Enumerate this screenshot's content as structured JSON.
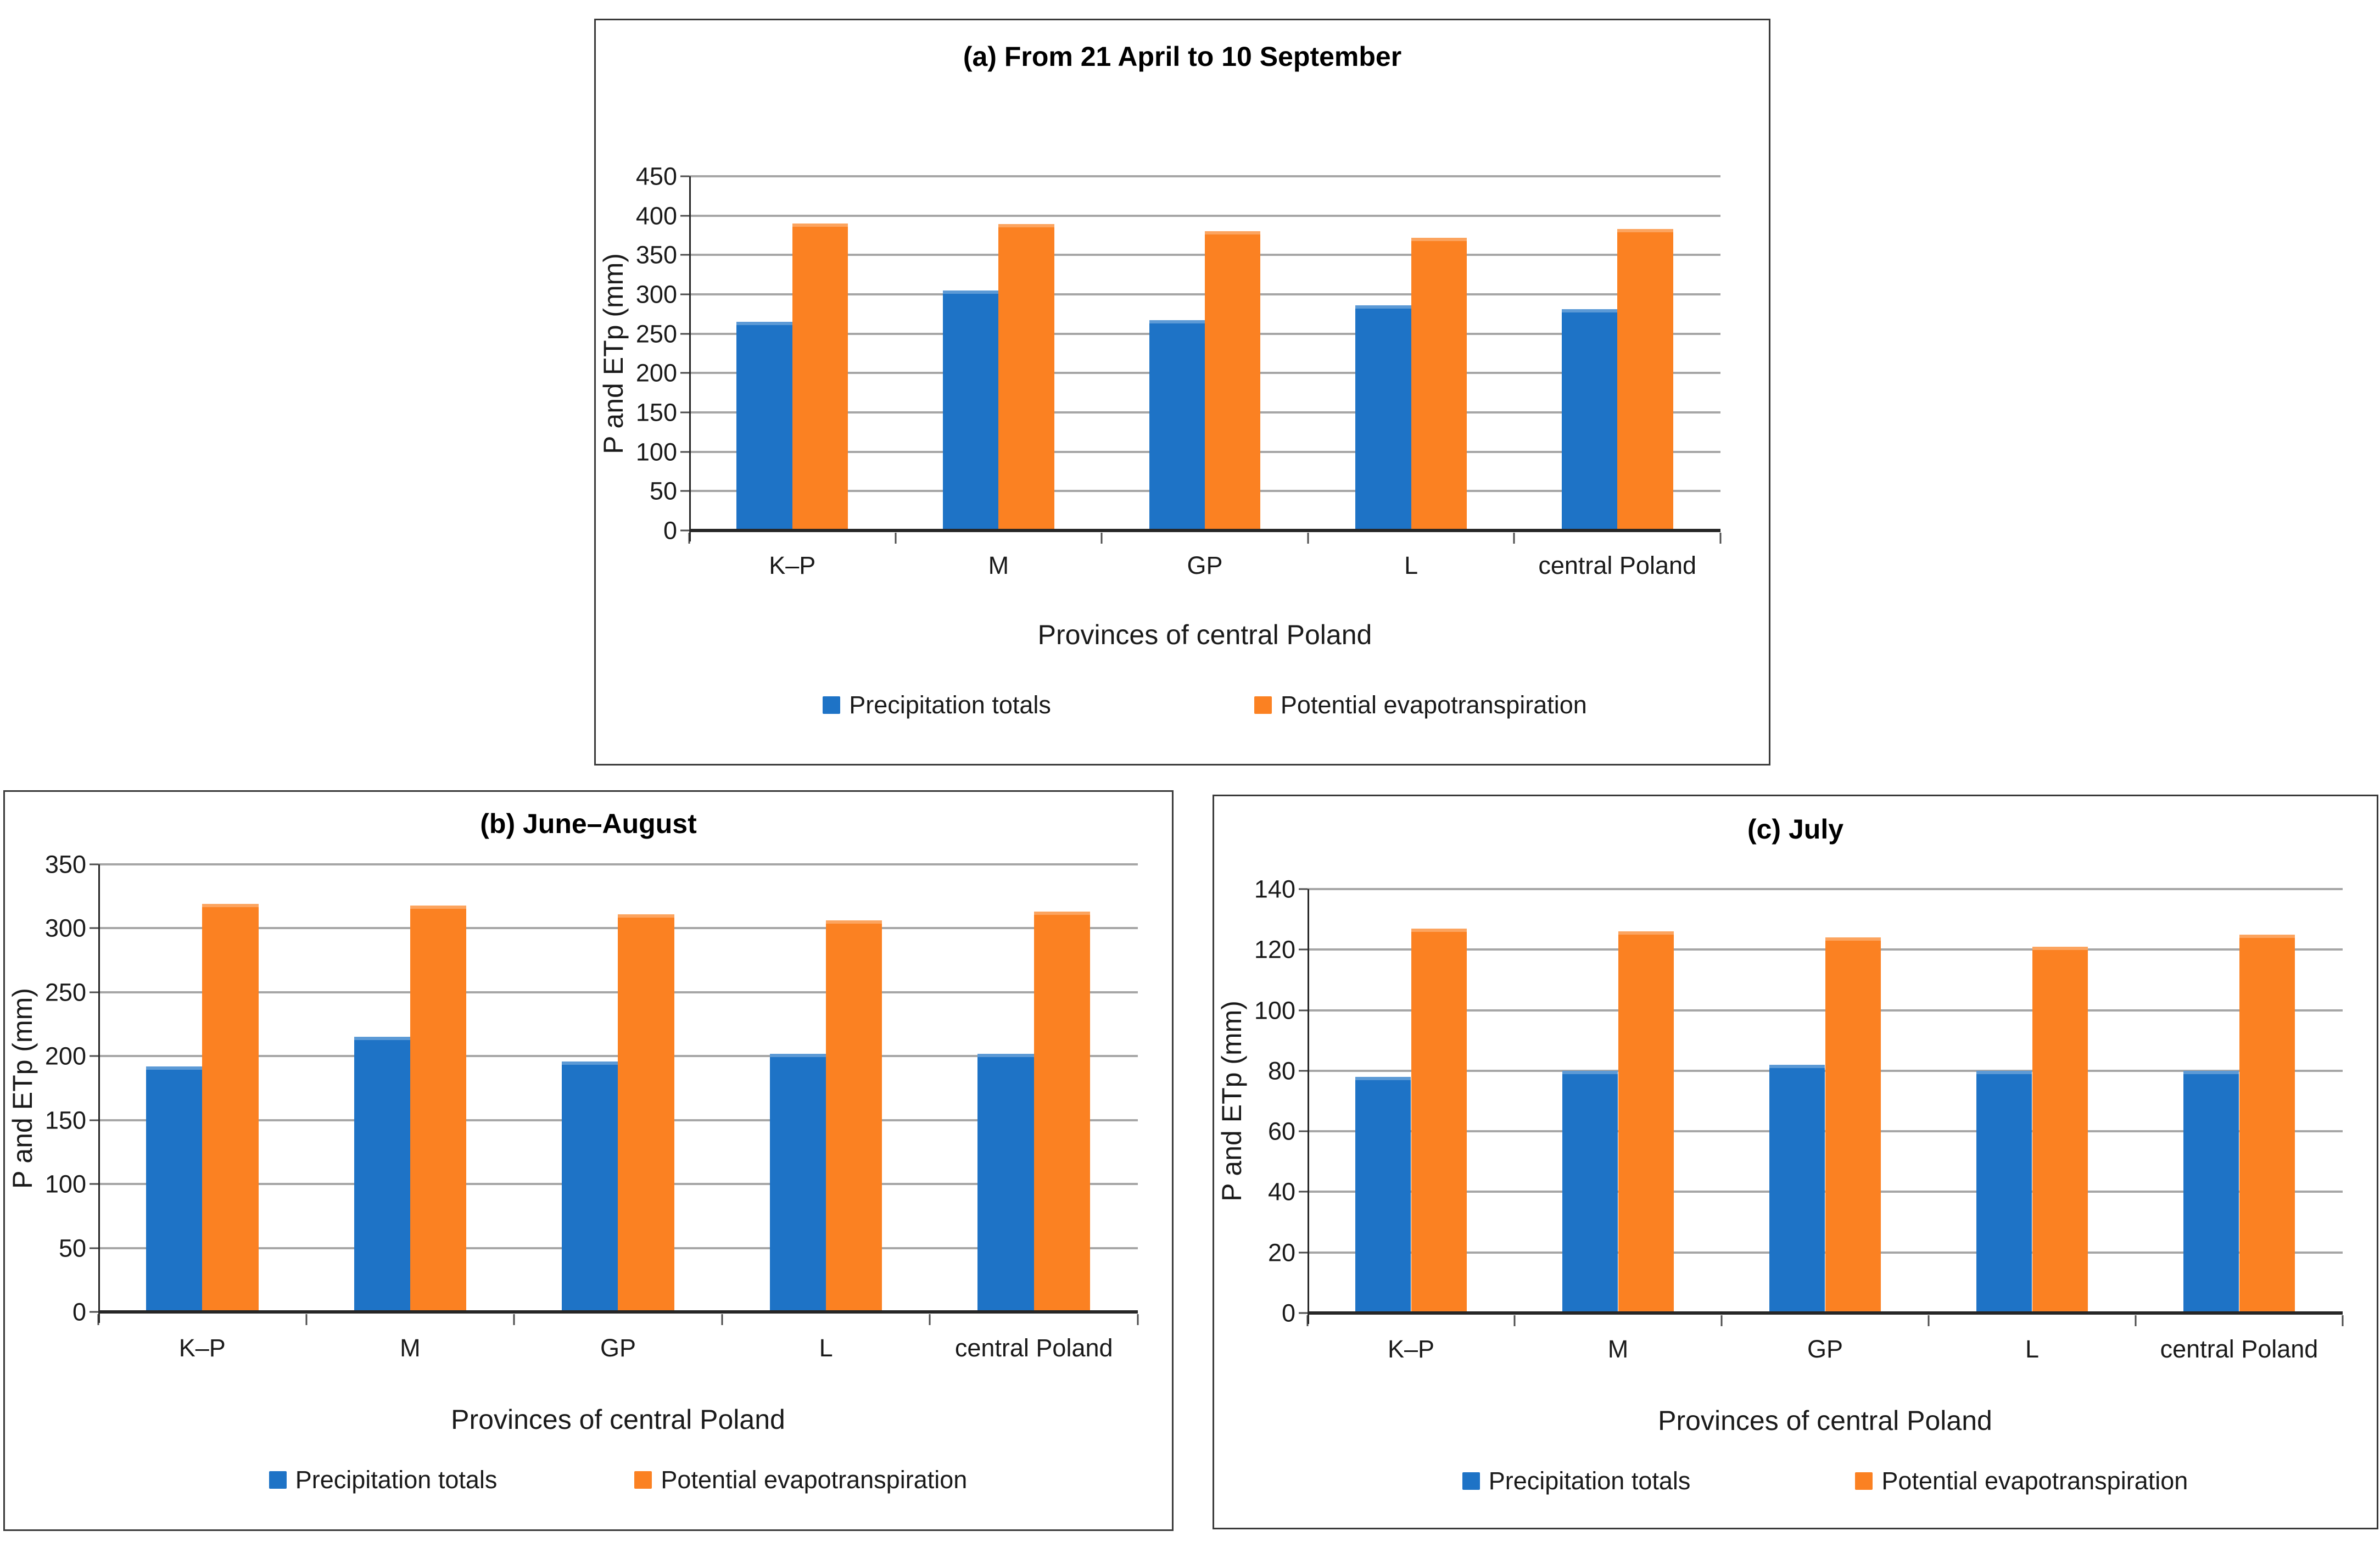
{
  "figure": {
    "background": "#ffffff",
    "description": "Three bar chart panels comparing precipitation totals and potential evapotranspiration in provinces of central Poland"
  },
  "style": {
    "precipitation_color": "#1E73C6",
    "evapotranspiration_color": "#FB8122",
    "gridline_color": "#A6A6A6",
    "axis_color": "#262626",
    "text_color": "#1A1A1A",
    "panel_border_color": "#3A3A3A"
  },
  "chart_data": [
    {
      "id": "a",
      "type": "bar",
      "title": "(a) From 21 April to 10 September",
      "xlabel": "Provinces of central Poland",
      "ylabel": "P and ETp (mm)",
      "categories": [
        "K–P",
        "M",
        "GP",
        "L",
        "central Poland"
      ],
      "series": [
        {
          "name": "Precipitation totals",
          "color": "#1E73C6",
          "values": [
            265,
            305,
            267,
            286,
            281
          ]
        },
        {
          "name": "Potential evapotranspiration",
          "color": "#FB8122",
          "values": [
            390,
            389,
            380,
            372,
            383
          ]
        }
      ],
      "ylim": [
        0,
        450
      ],
      "ytick_step": 50,
      "yticks": [
        450,
        400,
        350,
        300,
        250,
        200,
        150,
        100,
        50,
        0
      ],
      "grid": true,
      "legend_position": "bottom"
    },
    {
      "id": "b",
      "type": "bar",
      "title": "(b) June–August",
      "xlabel": "Provinces of central Poland",
      "ylabel": "P and ETp (mm)",
      "categories": [
        "K–P",
        "M",
        "GP",
        "L",
        "central Poland"
      ],
      "series": [
        {
          "name": "Precipitation totals",
          "color": "#1E73C6",
          "values": [
            192,
            215,
            196,
            202,
            202
          ]
        },
        {
          "name": "Potential evapotranspiration",
          "color": "#FB8122",
          "values": [
            319,
            318,
            311,
            306,
            313
          ]
        }
      ],
      "ylim": [
        0,
        350
      ],
      "ytick_step": 50,
      "yticks": [
        350,
        300,
        250,
        200,
        150,
        100,
        50,
        0
      ],
      "grid": true,
      "legend_position": "bottom"
    },
    {
      "id": "c",
      "type": "bar",
      "title": "(c) July",
      "xlabel": "Provinces of central Poland",
      "ylabel": "P and ETp (mm)",
      "categories": [
        "K–P",
        "M",
        "GP",
        "L",
        "central Poland"
      ],
      "series": [
        {
          "name": "Precipitation totals",
          "color": "#1E73C6",
          "values": [
            78,
            80,
            82,
            80,
            80
          ]
        },
        {
          "name": "Potential evapotranspiration",
          "color": "#FB8122",
          "values": [
            127,
            126,
            124,
            121,
            125
          ]
        }
      ],
      "ylim": [
        0,
        140
      ],
      "ytick_step": 20,
      "yticks": [
        140,
        120,
        100,
        80,
        60,
        40,
        20,
        0
      ],
      "grid": true,
      "legend_position": "bottom"
    }
  ]
}
